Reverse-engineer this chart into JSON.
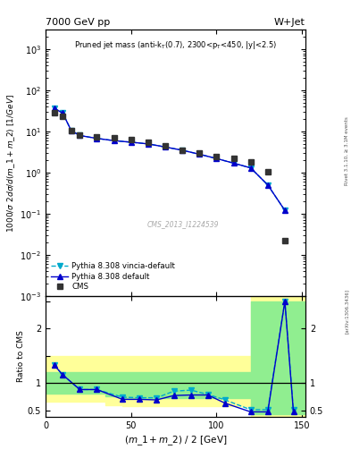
{
  "title_left": "7000 GeV pp",
  "title_right": "W+Jet",
  "cms_id": "CMS_2013_I1224539",
  "right_label": "Rivet 3.1.10, ≥ 3.1M events",
  "arxiv": "[arXiv:1306.3436]",
  "cms_x": [
    5,
    10,
    15,
    20,
    30,
    40,
    50,
    60,
    70,
    80,
    90,
    100,
    110,
    120,
    130,
    140
  ],
  "cms_y": [
    28,
    24,
    10.5,
    8.0,
    7.5,
    7.0,
    6.5,
    5.5,
    4.5,
    3.5,
    3.0,
    2.5,
    2.2,
    1.8,
    1.05,
    0.022
  ],
  "pythia_default_x": [
    5,
    10,
    15,
    20,
    30,
    40,
    50,
    60,
    70,
    80,
    90,
    100,
    110,
    120,
    130,
    140
  ],
  "pythia_default_y": [
    37,
    28,
    10.5,
    8.0,
    6.8,
    6.0,
    5.5,
    5.0,
    4.2,
    3.5,
    2.8,
    2.2,
    1.7,
    1.3,
    0.5,
    0.12
  ],
  "pythia_vincia_x": [
    5,
    10,
    15,
    20,
    30,
    40,
    50,
    60,
    70,
    80,
    90,
    100,
    110,
    120,
    130,
    140
  ],
  "pythia_vincia_y": [
    37,
    28,
    10.5,
    8.0,
    6.8,
    6.0,
    5.5,
    5.0,
    4.2,
    3.5,
    2.8,
    2.2,
    1.7,
    1.3,
    0.5,
    0.12
  ],
  "ratio_default_x": [
    5,
    10,
    20,
    30,
    45,
    55,
    65,
    75,
    85,
    95,
    105,
    120,
    130,
    140,
    145
  ],
  "ratio_default_y": [
    1.33,
    1.15,
    0.88,
    0.88,
    0.7,
    0.7,
    0.69,
    0.77,
    0.78,
    0.78,
    0.63,
    0.47,
    0.47,
    2.5,
    0.47
  ],
  "ratio_vincia_x": [
    5,
    10,
    20,
    30,
    45,
    55,
    65,
    75,
    85,
    95,
    105,
    120,
    130,
    140,
    145
  ],
  "ratio_vincia_y": [
    1.33,
    1.15,
    0.88,
    0.88,
    0.74,
    0.73,
    0.73,
    0.85,
    0.87,
    0.79,
    0.69,
    0.51,
    0.51,
    2.5,
    0.51
  ],
  "band_steps_x": [
    0,
    15,
    25,
    35,
    45,
    55,
    65,
    75,
    85,
    95,
    105,
    120,
    130,
    155
  ],
  "band_green_low": [
    0.8,
    0.8,
    0.8,
    0.75,
    0.72,
    0.72,
    0.72,
    0.72,
    0.72,
    0.72,
    0.72,
    0.42,
    0.42,
    0.42
  ],
  "band_green_high": [
    1.2,
    1.2,
    1.2,
    1.2,
    1.2,
    1.2,
    1.2,
    1.2,
    1.2,
    1.2,
    1.2,
    2.5,
    2.5,
    2.5
  ],
  "band_yellow_low": [
    0.65,
    0.65,
    0.65,
    0.6,
    0.58,
    0.58,
    0.58,
    0.58,
    0.58,
    0.58,
    0.58,
    0.38,
    0.38,
    0.38
  ],
  "band_yellow_high": [
    1.5,
    1.5,
    1.5,
    1.5,
    1.5,
    1.5,
    1.5,
    1.5,
    1.5,
    1.5,
    1.5,
    2.6,
    2.6,
    2.6
  ],
  "xlim": [
    0,
    152
  ],
  "ylim_main": [
    0.001,
    3000
  ],
  "ylim_ratio": [
    0.38,
    2.6
  ],
  "color_cms": "#333333",
  "color_default": "#0000cc",
  "color_vincia": "#00aacc",
  "color_green_band": "#90ee90",
  "color_yellow_band": "#ffff99"
}
